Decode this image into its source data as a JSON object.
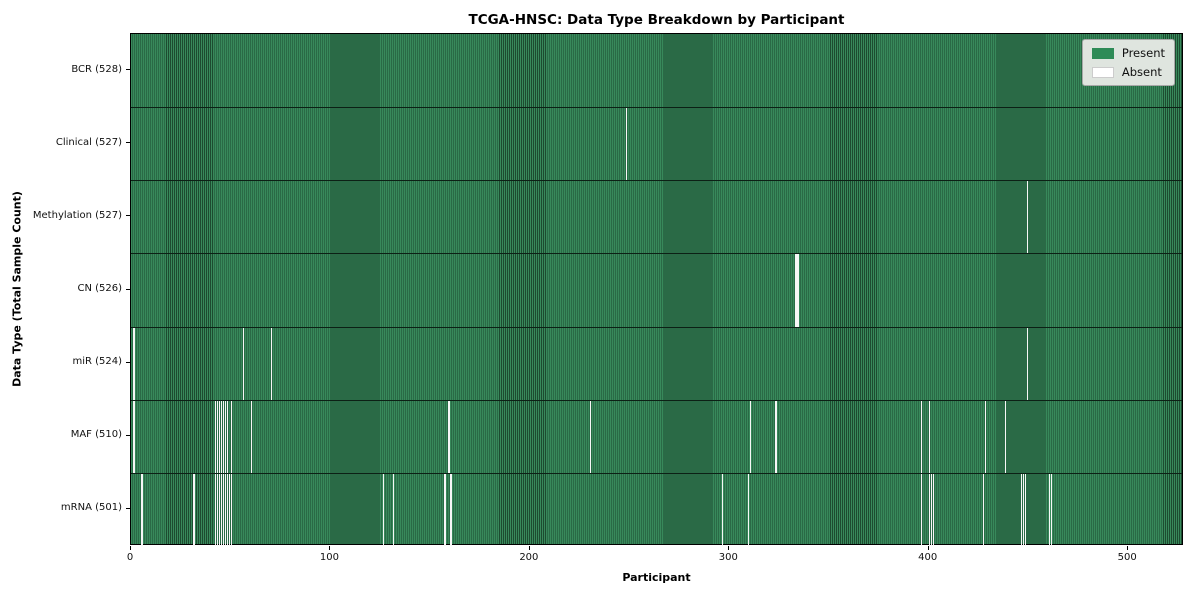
{
  "figure": {
    "title": "TCGA-HNSC: Data Type Breakdown by Participant",
    "xlabel": "Participant",
    "ylabel": "Data Type (Total Sample Count)"
  },
  "legend": {
    "items": [
      {
        "label": "Present",
        "color": "#2e8b57"
      },
      {
        "label": "Absent",
        "color": "#ffffff"
      }
    ]
  },
  "chart_data": {
    "type": "heatmap",
    "title": "TCGA-HNSC: Data Type Breakdown by Participant",
    "xlabel": "Participant",
    "ylabel": "Data Type (Total Sample Count)",
    "x_ticks": [
      0,
      100,
      200,
      300,
      400,
      500
    ],
    "xlim": [
      0,
      528
    ],
    "n_participants": 528,
    "grid": false,
    "legend_position": "upper right",
    "colors": {
      "present": "#2e8b57",
      "absent": "#ffffff"
    },
    "legend": [
      {
        "label": "Present",
        "color": "#2e8b57"
      },
      {
        "label": "Absent",
        "color": "#ffffff"
      }
    ],
    "rows": [
      {
        "label": "BCR (528)",
        "data_type": "BCR",
        "total_samples": 528,
        "absent_count": 0,
        "absent_participants": []
      },
      {
        "label": "Clinical (527)",
        "data_type": "Clinical",
        "total_samples": 527,
        "absent_count": 1,
        "absent_participants": [
          248
        ]
      },
      {
        "label": "Methylation (527)",
        "data_type": "Methylation",
        "total_samples": 527,
        "absent_count": 1,
        "absent_participants": [
          449
        ]
      },
      {
        "label": "CN (526)",
        "data_type": "CN",
        "total_samples": 526,
        "absent_count": 2,
        "absent_participants": [
          333,
          334
        ]
      },
      {
        "label": "miR (524)",
        "data_type": "miR",
        "total_samples": 524,
        "absent_count": 4,
        "absent_participants": [
          1,
          56,
          70,
          449
        ]
      },
      {
        "label": "MAF (510)",
        "data_type": "MAF",
        "total_samples": 510,
        "absent_count": 18,
        "absent_participants": [
          1,
          42,
          43,
          44,
          45,
          46,
          47,
          48,
          50,
          60,
          159,
          230,
          310,
          323,
          396,
          400,
          428,
          438
        ]
      },
      {
        "label": "mRNA (501)",
        "data_type": "mRNA",
        "total_samples": 501,
        "absent_count": 27,
        "absent_participants": [
          5,
          31,
          42,
          43,
          44,
          45,
          46,
          47,
          48,
          49,
          50,
          126,
          131,
          157,
          160,
          296,
          309,
          396,
          400,
          401,
          402,
          427,
          446,
          447,
          448,
          460,
          461
        ]
      }
    ]
  }
}
